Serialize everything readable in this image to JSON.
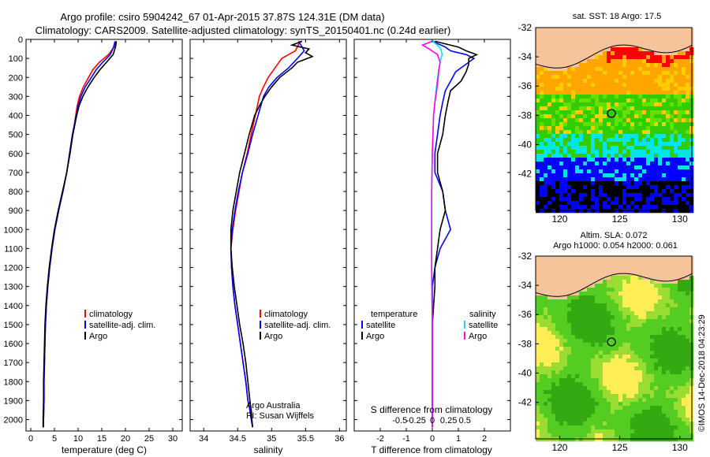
{
  "title_line1": "Argo profile: csiro 5904242_67 01-Apr-2015 37.87S 124.31E (DM data)",
  "title_line2": "Climatology: CARS2009. Satellite-adjusted climatology: synTS_20150401.nc (0.24d earlier)",
  "credit": "Argo Australia",
  "pi": "PI: Susan Wijffels",
  "imos_stamp": "©IMOS 14-Dec-2018 04:23:29",
  "colors": {
    "climatology": "#ff0000",
    "satellite": "#0000ff",
    "argo": "#000000",
    "sat_s": "#00e5e5",
    "argo_s": "#ff00ff"
  },
  "chart_data": [
    {
      "type": "line",
      "xlabel": "temperature (deg C)",
      "ylabel": "",
      "xlim": [
        -1,
        32
      ],
      "ylim": [
        2060,
        0
      ],
      "xticks": [
        0,
        5,
        10,
        15,
        20,
        25,
        30
      ],
      "yticks": [
        0,
        100,
        200,
        300,
        400,
        500,
        600,
        700,
        800,
        900,
        1000,
        1100,
        1200,
        1300,
        1400,
        1500,
        1600,
        1700,
        1800,
        1900,
        2000
      ],
      "legend": [
        "climatology",
        "satellite-adj. clim.",
        "Argo"
      ],
      "series": [
        {
          "name": "climatology",
          "color": "#ff0000",
          "x": [
            18,
            17.6,
            16.4,
            14.5,
            13.1,
            12.2,
            11.1,
            10.3,
            9.8,
            9.5,
            9.2,
            8.8,
            8.2,
            7.6,
            6.8,
            5.9,
            5.1,
            4.5,
            4.0,
            3.6,
            3.3,
            3.1,
            3.0,
            2.9,
            2.8,
            2.8,
            2.7,
            2.7
          ],
          "y": [
            10,
            40,
            80,
            120,
            160,
            200,
            250,
            300,
            350,
            400,
            450,
            500,
            600,
            700,
            800,
            900,
            1000,
            1100,
            1200,
            1300,
            1400,
            1500,
            1600,
            1700,
            1800,
            1900,
            2000,
            2040
          ]
        },
        {
          "name": "satellite-adj. clim.",
          "color": "#0000ff",
          "x": [
            17.8,
            17.5,
            16.8,
            15.2,
            13.8,
            12.8,
            11.5,
            10.6,
            10.0,
            9.6,
            9.2,
            8.8,
            8.2,
            7.6,
            6.8,
            5.9,
            5.1,
            4.5,
            4.0,
            3.6,
            3.3,
            3.1,
            3.0,
            2.9,
            2.8,
            2.8,
            2.7,
            2.7
          ],
          "y": [
            10,
            40,
            80,
            120,
            160,
            200,
            250,
            300,
            350,
            400,
            450,
            500,
            600,
            700,
            800,
            900,
            1000,
            1100,
            1200,
            1300,
            1400,
            1500,
            1600,
            1700,
            1800,
            1900,
            2000,
            2040
          ]
        },
        {
          "name": "Argo",
          "color": "#000000",
          "x": [
            18.1,
            17.9,
            17.4,
            16.0,
            14.6,
            13.4,
            12.1,
            11.0,
            10.2,
            9.7,
            9.3,
            8.9,
            8.3,
            7.6,
            6.7,
            5.8,
            5.0,
            4.4,
            3.9,
            3.5,
            3.2,
            3.0,
            2.9,
            2.8,
            2.7,
            2.7,
            2.6,
            2.6
          ],
          "y": [
            10,
            40,
            80,
            120,
            160,
            200,
            250,
            300,
            350,
            400,
            450,
            500,
            600,
            700,
            800,
            900,
            1000,
            1100,
            1200,
            1300,
            1400,
            1500,
            1600,
            1700,
            1800,
            1900,
            2000,
            2040
          ]
        }
      ]
    },
    {
      "type": "line",
      "xlabel": "salinity",
      "ylabel": "",
      "xlim": [
        33.8,
        36.1
      ],
      "ylim": [
        2060,
        0
      ],
      "xticks": [
        34,
        34.5,
        35,
        35.5,
        36
      ],
      "legend": [
        "climatology",
        "satellite-adj. clim.",
        "Argo"
      ],
      "series": [
        {
          "name": "climatology",
          "color": "#ff0000",
          "x": [
            35.42,
            35.35,
            35.15,
            35.05,
            34.95,
            34.88,
            34.82,
            34.76,
            34.7,
            34.64,
            34.57,
            34.52,
            34.47,
            34.43,
            34.4,
            34.41,
            34.43,
            34.46,
            34.5,
            34.54,
            34.58,
            34.62,
            34.65,
            34.68,
            34.7,
            34.71,
            34.72
          ],
          "y": [
            10,
            60,
            100,
            150,
            200,
            250,
            300,
            400,
            500,
            600,
            700,
            800,
            900,
            1000,
            1100,
            1200,
            1300,
            1400,
            1500,
            1600,
            1700,
            1800,
            1900,
            1950,
            2000,
            2020,
            2040
          ]
        },
        {
          "name": "satellite-adj. clim.",
          "color": "#0000ff",
          "x": [
            35.4,
            35.48,
            35.38,
            35.25,
            35.08,
            34.96,
            34.88,
            34.8,
            34.72,
            34.65,
            34.57,
            34.51,
            34.46,
            34.42,
            34.4,
            34.41,
            34.43,
            34.46,
            34.5,
            34.54,
            34.58,
            34.62,
            34.65,
            34.68,
            34.7,
            34.71,
            34.72
          ],
          "y": [
            10,
            60,
            100,
            150,
            200,
            250,
            300,
            400,
            500,
            600,
            700,
            800,
            900,
            1000,
            1100,
            1200,
            1300,
            1400,
            1500,
            1600,
            1700,
            1800,
            1900,
            1950,
            2000,
            2020,
            2040
          ]
        },
        {
          "name": "Argo",
          "color": "#000000",
          "x": [
            35.45,
            35.3,
            35.55,
            35.5,
            35.6,
            35.38,
            35.3,
            35.12,
            35.0,
            34.9,
            34.82,
            34.75,
            34.67,
            34.6,
            34.53,
            34.48,
            34.43,
            34.4,
            34.4,
            34.42,
            34.45,
            34.49,
            34.53,
            34.58,
            34.62,
            34.65,
            34.68,
            34.7,
            34.71,
            34.72
          ],
          "y": [
            10,
            30,
            50,
            70,
            90,
            120,
            150,
            200,
            250,
            300,
            350,
            400,
            500,
            600,
            700,
            800,
            900,
            1000,
            1100,
            1200,
            1300,
            1400,
            1500,
            1600,
            1700,
            1800,
            1900,
            1950,
            2000,
            2040
          ]
        }
      ]
    },
    {
      "type": "line",
      "xlabel": "T difference from climatology",
      "x2label": "S difference from climatology",
      "ylabel": "",
      "xlim": [
        -3,
        3
      ],
      "ylim": [
        2060,
        0
      ],
      "xticks": [
        -2,
        -1,
        0,
        1,
        2
      ],
      "x2ticks": [
        -0.5,
        -0.25,
        0,
        0.25,
        0.5
      ],
      "legend_left_title": "temperature",
      "legend_right_title": "salinity",
      "legend_left": [
        "satellite",
        "Argo"
      ],
      "legend_right": [
        "satellite",
        "Argo"
      ],
      "series": [
        {
          "name": "T satellite",
          "color": "#0000ff",
          "x": [
            0,
            0.5,
            0.7,
            1.3,
            1.6,
            1.3,
            0.9,
            0.7,
            0.5,
            0.4,
            0.3,
            0.2,
            0.1,
            0.1,
            0.4,
            0.5,
            0.6,
            0.7,
            0.3,
            0.1,
            0,
            0,
            0,
            0,
            0,
            0
          ],
          "y": [
            10,
            40,
            60,
            80,
            100,
            130,
            170,
            220,
            270,
            330,
            400,
            500,
            600,
            700,
            800,
            900,
            950,
            1000,
            1100,
            1200,
            1300,
            1500,
            1700,
            1900,
            2000,
            2040
          ]
        },
        {
          "name": "T Argo",
          "color": "#000000",
          "x": [
            0.1,
            1.0,
            1.3,
            1.7,
            1.4,
            1.4,
            1.3,
            1.1,
            0.7,
            0.6,
            0.5,
            0.4,
            0.2,
            0.2,
            0.4,
            0.5,
            0.4,
            0.3,
            0.2,
            0.1,
            0.1,
            0,
            0,
            0,
            0,
            0
          ],
          "y": [
            10,
            40,
            60,
            80,
            100,
            130,
            170,
            220,
            270,
            330,
            400,
            500,
            600,
            700,
            800,
            900,
            950,
            1000,
            1100,
            1200,
            1300,
            1500,
            1700,
            1900,
            2000,
            2040
          ]
        },
        {
          "name": "S satellite",
          "color": "#00e5e5",
          "x": [
            0,
            0.08,
            0.13,
            0.15,
            0.12,
            0.1,
            0.08,
            0.06,
            0.04,
            0.02,
            0.01,
            0,
            -0.01,
            -0.01,
            -0.01,
            0,
            0,
            0
          ],
          "y": [
            10,
            30,
            50,
            80,
            120,
            160,
            200,
            260,
            330,
            400,
            500,
            600,
            800,
            1000,
            1200,
            1500,
            1800,
            2040
          ]
        },
        {
          "name": "S Argo",
          "color": "#ff00ff",
          "x": [
            0,
            -0.15,
            -0.05,
            0.08,
            0.12,
            0.1,
            0.09,
            0.07,
            0.04,
            0.02,
            0.01,
            0,
            -0.01,
            -0.01,
            -0.01,
            0,
            0,
            0
          ],
          "y": [
            10,
            30,
            50,
            80,
            120,
            160,
            200,
            260,
            330,
            400,
            500,
            600,
            800,
            1000,
            1200,
            1500,
            1800,
            2040
          ]
        }
      ]
    },
    {
      "type": "heatmap",
      "title": "sat. SST: 18 Argo: 17.5",
      "xticks": [
        120,
        125,
        130
      ],
      "yticks": [
        -32,
        -34,
        -36,
        -38,
        -40,
        -42
      ],
      "xlim": [
        118,
        131
      ],
      "ylim": [
        -44.5,
        -32
      ],
      "marker": [
        124.31,
        -37.87
      ]
    },
    {
      "type": "heatmap",
      "title": "Altim. SLA: 0.072",
      "subtitle": "Argo h1000: 0.054 h2000: 0.061",
      "xticks": [
        120,
        125,
        130
      ],
      "yticks": [
        -32,
        -34,
        -36,
        -38,
        -40,
        -42
      ],
      "xlim": [
        118,
        131
      ],
      "ylim": [
        -44.5,
        -32
      ],
      "marker": [
        124.31,
        -37.87
      ]
    }
  ]
}
